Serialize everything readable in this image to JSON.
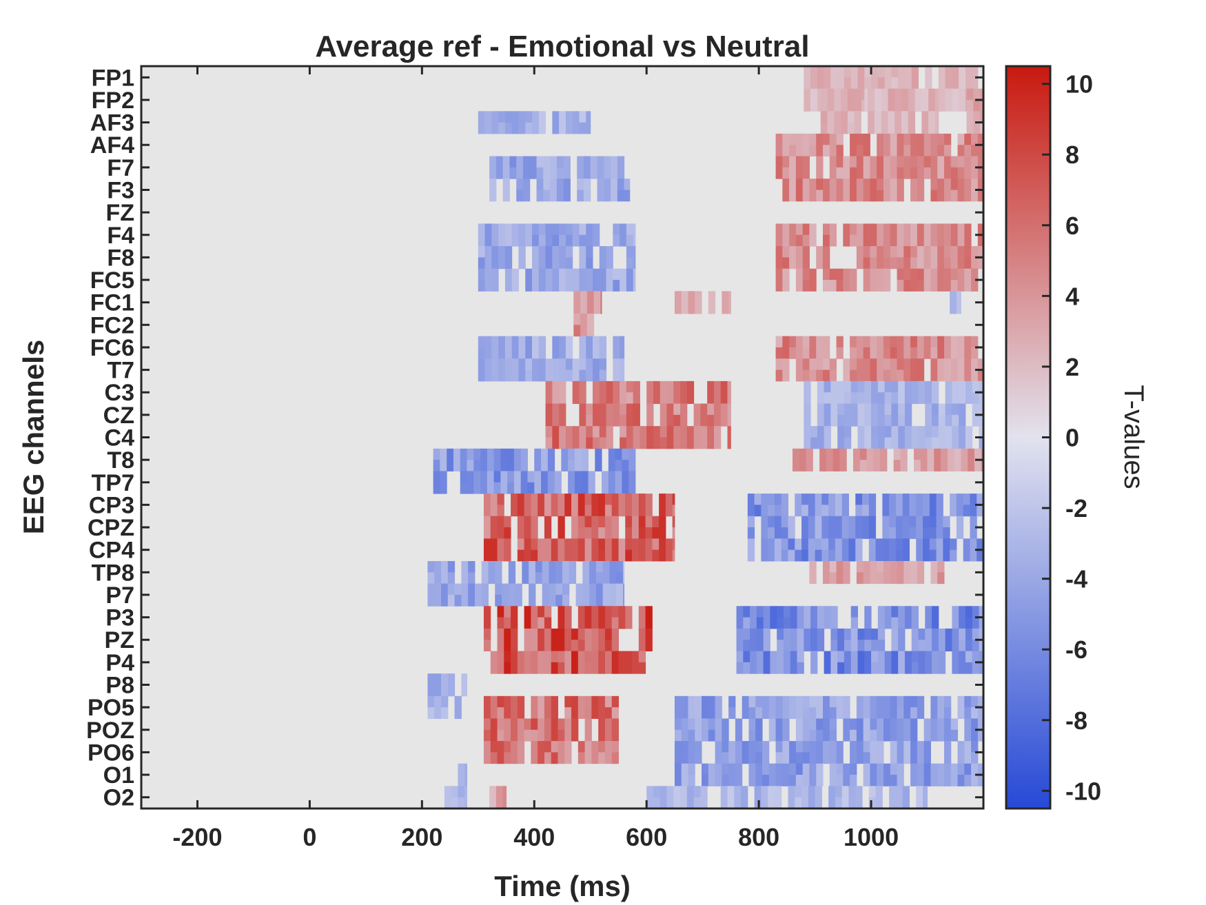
{
  "chart_data": {
    "type": "heatmap",
    "title": "Average ref - Emotional vs Neutral",
    "xlabel": "Time (ms)",
    "ylabel": "EEG channels",
    "colorbar_label": "T-values",
    "xlim": [
      -300,
      1200
    ],
    "x_ticks": [
      -200,
      0,
      200,
      400,
      600,
      800,
      1000
    ],
    "clim": [
      -10.5,
      10.5
    ],
    "colorbar_ticks": [
      10,
      8,
      6,
      4,
      2,
      0,
      -2,
      -4,
      -6,
      -8,
      -10
    ],
    "colormap": [
      "#2649d6",
      "#e2e2ee",
      "#c8190f"
    ],
    "background_color": "#e6e6e6",
    "channels": [
      "FP1",
      "FP2",
      "AF3",
      "AF4",
      "F7",
      "F3",
      "FZ",
      "F4",
      "F8",
      "FC5",
      "FC1",
      "FC2",
      "FC6",
      "T7",
      "C3",
      "CZ",
      "C4",
      "T8",
      "TP7",
      "CP3",
      "CPZ",
      "CP4",
      "TP8",
      "P7",
      "P3",
      "PZ",
      "P4",
      "P8",
      "PO5",
      "POZ",
      "PO6",
      "O1",
      "O2"
    ],
    "clusters": [
      {
        "rows": [
          0,
          1
        ],
        "t_start": 880,
        "t_end": 1190,
        "t": 3.0
      },
      {
        "rows": [
          1,
          2
        ],
        "t_start": 1170,
        "t_end": 1200,
        "t": 3.5
      },
      {
        "rows": [
          1,
          2
        ],
        "t_start": 910,
        "t_end": 1120,
        "t": 3.0
      },
      {
        "rows": [
          2,
          2
        ],
        "t_start": 300,
        "t_end": 500,
        "t": -4.0
      },
      {
        "rows": [
          3,
          5
        ],
        "t_start": 830,
        "t_end": 1200,
        "t": 5.5
      },
      {
        "rows": [
          4,
          5
        ],
        "t_start": 320,
        "t_end": 570,
        "t": -5.0
      },
      {
        "rows": [
          7,
          9
        ],
        "t_start": 300,
        "t_end": 580,
        "t": -5.0
      },
      {
        "rows": [
          7,
          9
        ],
        "t_start": 830,
        "t_end": 1200,
        "t": 5.5
      },
      {
        "rows": [
          10,
          11
        ],
        "t_start": 470,
        "t_end": 520,
        "t": 5.0
      },
      {
        "rows": [
          10,
          10
        ],
        "t_start": 650,
        "t_end": 750,
        "t": 3.5
      },
      {
        "rows": [
          10,
          10
        ],
        "t_start": 1140,
        "t_end": 1160,
        "t": -3.0
      },
      {
        "rows": [
          12,
          13
        ],
        "t_start": 300,
        "t_end": 560,
        "t": -4.5
      },
      {
        "rows": [
          12,
          13
        ],
        "t_start": 830,
        "t_end": 1200,
        "t": 5.5
      },
      {
        "rows": [
          14,
          16
        ],
        "t_start": 420,
        "t_end": 750,
        "t": 6.5
      },
      {
        "rows": [
          14,
          16
        ],
        "t_start": 880,
        "t_end": 1200,
        "t": -4.0
      },
      {
        "rows": [
          17,
          18
        ],
        "t_start": 220,
        "t_end": 580,
        "t": -6.0
      },
      {
        "rows": [
          17,
          17
        ],
        "t_start": 860,
        "t_end": 1200,
        "t": 4.5
      },
      {
        "rows": [
          19,
          21
        ],
        "t_start": 310,
        "t_end": 650,
        "t": 8.0
      },
      {
        "rows": [
          19,
          21
        ],
        "t_start": 780,
        "t_end": 1200,
        "t": -6.5
      },
      {
        "rows": [
          22,
          23
        ],
        "t_start": 210,
        "t_end": 560,
        "t": -5.0
      },
      {
        "rows": [
          22,
          22
        ],
        "t_start": 890,
        "t_end": 1130,
        "t": 4.0
      },
      {
        "rows": [
          24,
          26
        ],
        "t_start": 310,
        "t_end": 610,
        "t": 8.5
      },
      {
        "rows": [
          24,
          26
        ],
        "t_start": 760,
        "t_end": 1200,
        "t": -7.0
      },
      {
        "rows": [
          27,
          28
        ],
        "t_start": 210,
        "t_end": 280,
        "t": -4.0
      },
      {
        "rows": [
          28,
          30
        ],
        "t_start": 310,
        "t_end": 550,
        "t": 7.0
      },
      {
        "rows": [
          28,
          31
        ],
        "t_start": 650,
        "t_end": 1200,
        "t": -5.5
      },
      {
        "rows": [
          31,
          32
        ],
        "t_start": 240,
        "t_end": 280,
        "t": -3.5
      },
      {
        "rows": [
          32,
          32
        ],
        "t_start": 320,
        "t_end": 350,
        "t": 4.0
      },
      {
        "rows": [
          32,
          32
        ],
        "t_start": 600,
        "t_end": 1100,
        "t": -3.5
      }
    ]
  }
}
